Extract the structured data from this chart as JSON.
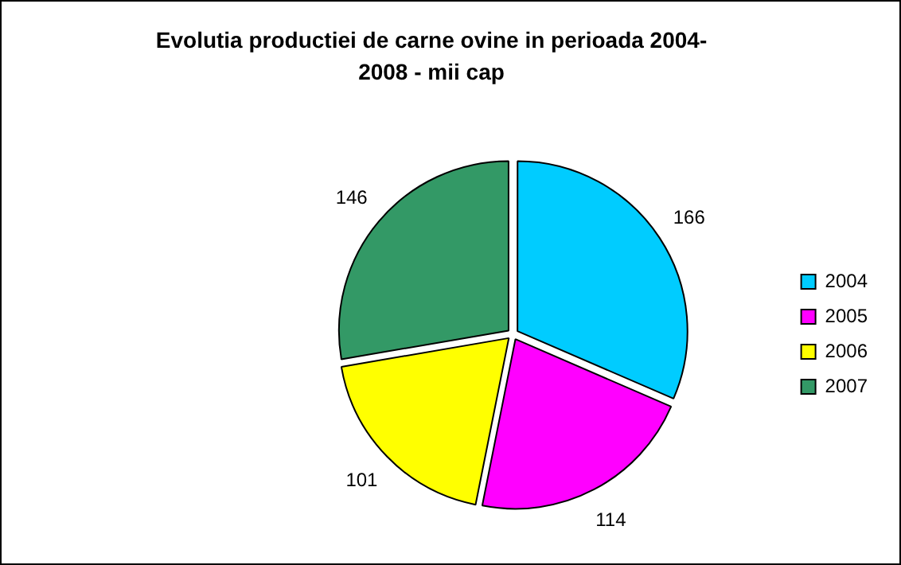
{
  "chart_data": {
    "type": "pie",
    "title": "Evolutia productiei de carne ovine in perioada 2004-2008 - mii cap",
    "categories": [
      "2004",
      "2005",
      "2006",
      "2007"
    ],
    "values": [
      166,
      114,
      101,
      146
    ],
    "colors": [
      "#00ccff",
      "#ff00ff",
      "#ffff00",
      "#339966"
    ],
    "data_labels": true,
    "legend": "right"
  }
}
